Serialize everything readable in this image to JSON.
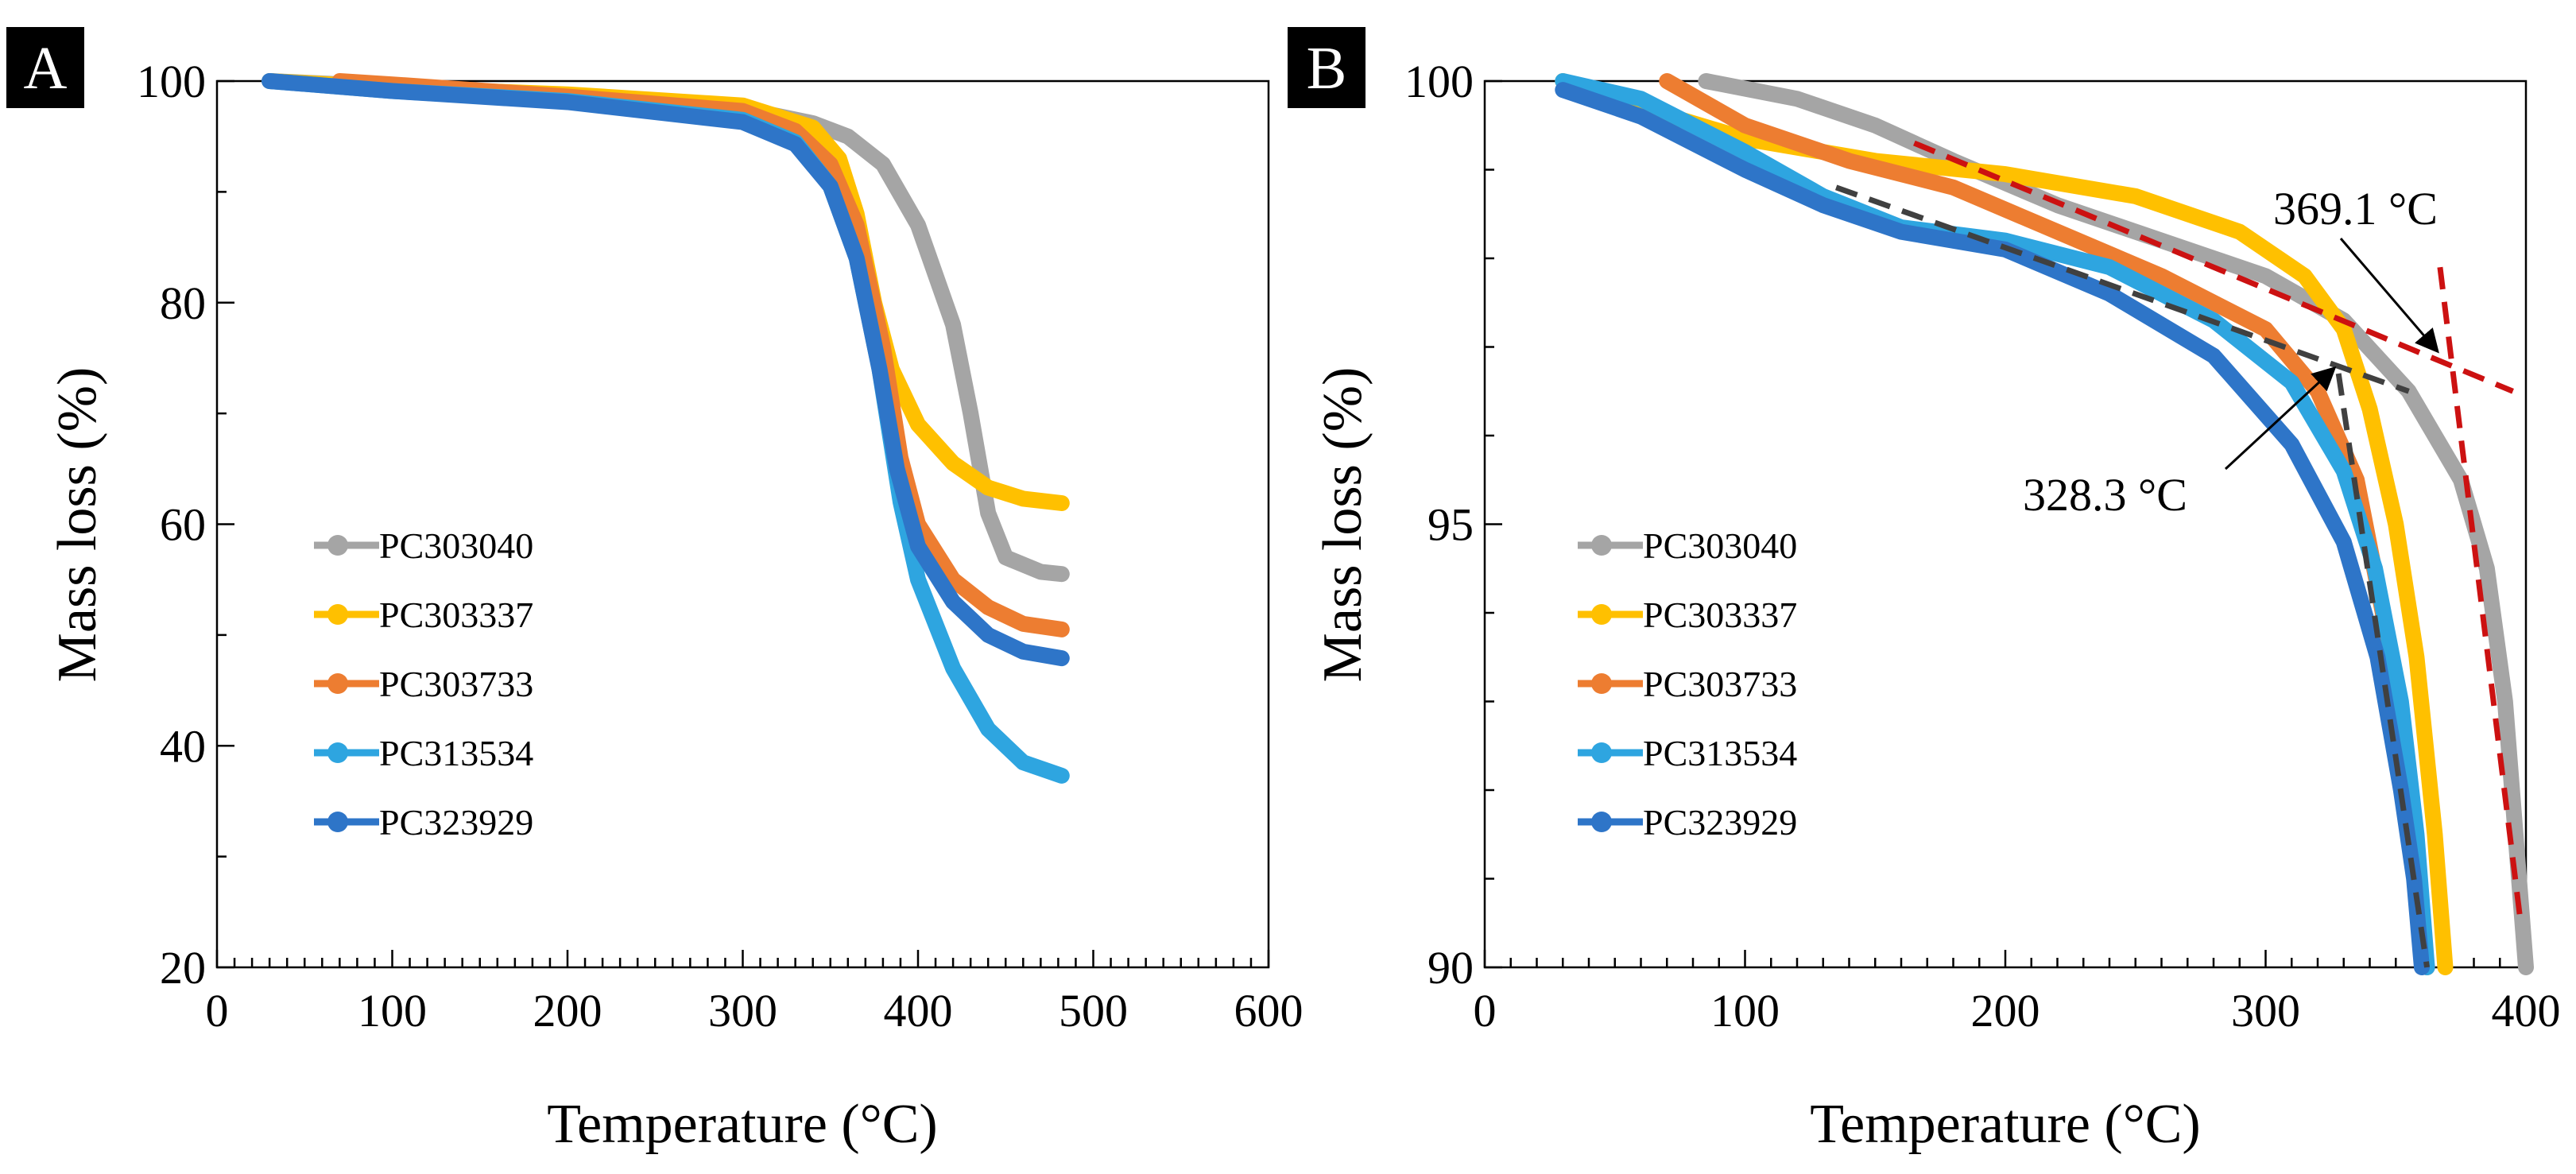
{
  "chart_data": [
    {
      "type": "line",
      "panel_label": "A",
      "xlabel": "Temperature (°C)",
      "ylabel": "Mass loss (%)",
      "xlim": [
        0,
        600
      ],
      "ylim": [
        20,
        100
      ],
      "xticks": [
        0,
        100,
        200,
        300,
        400,
        500,
        600
      ],
      "yticks": [
        20,
        40,
        60,
        80,
        100
      ],
      "xtick_labels": [
        "0",
        "100",
        "200",
        "300",
        "400",
        "500",
        "600"
      ],
      "ytick_labels": [
        "20",
        "40",
        "60",
        "80",
        "100"
      ],
      "legend_position": "lower-left",
      "series": [
        {
          "name": "PC303040",
          "color": "#a5a5a5",
          "points": [
            [
              30,
              100
            ],
            [
              100,
              99.5
            ],
            [
              200,
              98.7
            ],
            [
              300,
              97.5
            ],
            [
              340,
              96.2
            ],
            [
              360,
              95
            ],
            [
              380,
              92.5
            ],
            [
              400,
              87
            ],
            [
              420,
              78
            ],
            [
              430,
              70
            ],
            [
              440,
              61
            ],
            [
              450,
              57
            ],
            [
              470,
              55.7
            ],
            [
              482,
              55.5
            ]
          ]
        },
        {
          "name": "PC303337",
          "color": "#ffc000",
          "points": [
            [
              30,
              100
            ],
            [
              100,
              99.4
            ],
            [
              200,
              98.8
            ],
            [
              300,
              97.8
            ],
            [
              340,
              95.8
            ],
            [
              355,
              93
            ],
            [
              365,
              88
            ],
            [
              375,
              80
            ],
            [
              385,
              74
            ],
            [
              400,
              69
            ],
            [
              420,
              65.5
            ],
            [
              440,
              63.3
            ],
            [
              460,
              62.3
            ],
            [
              482,
              61.9
            ]
          ]
        },
        {
          "name": "PC303733",
          "color": "#ed7d31",
          "points": [
            [
              70,
              100
            ],
            [
              100,
              99.7
            ],
            [
              200,
              98.6
            ],
            [
              300,
              97.3
            ],
            [
              330,
              95.5
            ],
            [
              350,
              92.5
            ],
            [
              365,
              87
            ],
            [
              380,
              76
            ],
            [
              390,
              66
            ],
            [
              400,
              60
            ],
            [
              420,
              55
            ],
            [
              440,
              52.5
            ],
            [
              460,
              51
            ],
            [
              482,
              50.5
            ]
          ]
        },
        {
          "name": "PC313534",
          "color": "#2ea5e0",
          "points": [
            [
              30,
              100
            ],
            [
              100,
              99.1
            ],
            [
              200,
              98.2
            ],
            [
              300,
              96.5
            ],
            [
              330,
              94.5
            ],
            [
              350,
              90.5
            ],
            [
              365,
              84
            ],
            [
              378,
              74
            ],
            [
              390,
              62
            ],
            [
              400,
              55
            ],
            [
              420,
              47
            ],
            [
              440,
              41.5
            ],
            [
              460,
              38.5
            ],
            [
              482,
              37.3
            ]
          ]
        },
        {
          "name": "PC323929",
          "color": "#2e75c8",
          "points": [
            [
              30,
              100
            ],
            [
              100,
              99.1
            ],
            [
              200,
              98.1
            ],
            [
              300,
              96.3
            ],
            [
              330,
              94.3
            ],
            [
              350,
              90.5
            ],
            [
              365,
              84
            ],
            [
              378,
              74
            ],
            [
              388,
              65
            ],
            [
              400,
              58
            ],
            [
              420,
              53
            ],
            [
              440,
              50
            ],
            [
              460,
              48.5
            ],
            [
              482,
              47.9
            ]
          ]
        }
      ]
    },
    {
      "type": "line",
      "panel_label": "B",
      "xlabel": "Temperature (°C)",
      "ylabel": "Mass loss (%)",
      "xlim": [
        0,
        400
      ],
      "ylim": [
        90,
        100
      ],
      "xticks": [
        0,
        100,
        200,
        300,
        400
      ],
      "yticks": [
        90,
        95,
        100
      ],
      "xtick_labels": [
        "0",
        "100",
        "200",
        "300",
        "400"
      ],
      "ytick_labels": [
        "90",
        "95",
        "100"
      ],
      "legend_position": "lower-left",
      "series": [
        {
          "name": "PC303040",
          "color": "#a5a5a5",
          "points": [
            [
              85,
              100
            ],
            [
              120,
              99.8
            ],
            [
              150,
              99.5
            ],
            [
              180,
              99.1
            ],
            [
              220,
              98.6
            ],
            [
              260,
              98.2
            ],
            [
              300,
              97.8
            ],
            [
              330,
              97.3
            ],
            [
              355,
              96.5
            ],
            [
              375,
              95.5
            ],
            [
              385,
              94.5
            ],
            [
              392,
              93
            ],
            [
              396,
              91.5
            ],
            [
              400,
              90
            ]
          ]
        },
        {
          "name": "PC303337",
          "color": "#ffc000",
          "points": [
            [
              30,
              100
            ],
            [
              60,
              99.7
            ],
            [
              100,
              99.35
            ],
            [
              150,
              99.1
            ],
            [
              200,
              98.95
            ],
            [
              250,
              98.7
            ],
            [
              290,
              98.3
            ],
            [
              315,
              97.8
            ],
            [
              330,
              97.2
            ],
            [
              340,
              96.3
            ],
            [
              350,
              95
            ],
            [
              358,
              93.5
            ],
            [
              365,
              91.5
            ],
            [
              369,
              90
            ]
          ]
        },
        {
          "name": "PC303733",
          "color": "#ed7d31",
          "points": [
            [
              70,
              100
            ],
            [
              100,
              99.5
            ],
            [
              140,
              99.1
            ],
            [
              180,
              98.8
            ],
            [
              220,
              98.3
            ],
            [
              260,
              97.8
            ],
            [
              300,
              97.2
            ],
            [
              320,
              96.5
            ],
            [
              335,
              95.5
            ],
            [
              345,
              94
            ],
            [
              352,
              92.5
            ],
            [
              358,
              91
            ],
            [
              362,
              90
            ]
          ]
        },
        {
          "name": "PC313534",
          "color": "#2ea5e0",
          "points": [
            [
              30,
              100
            ],
            [
              60,
              99.8
            ],
            [
              100,
              99.2
            ],
            [
              130,
              98.7
            ],
            [
              160,
              98.35
            ],
            [
              200,
              98.2
            ],
            [
              240,
              97.9
            ],
            [
              280,
              97.3
            ],
            [
              310,
              96.6
            ],
            [
              330,
              95.6
            ],
            [
              342,
              94.5
            ],
            [
              352,
              93
            ],
            [
              358,
              91.5
            ],
            [
              362,
              90
            ]
          ]
        },
        {
          "name": "PC323929",
          "color": "#2e75c8",
          "points": [
            [
              30,
              99.9
            ],
            [
              60,
              99.6
            ],
            [
              100,
              99
            ],
            [
              130,
              98.6
            ],
            [
              160,
              98.3
            ],
            [
              200,
              98.1
            ],
            [
              240,
              97.6
            ],
            [
              280,
              96.9
            ],
            [
              310,
              95.9
            ],
            [
              330,
              94.8
            ],
            [
              343,
              93.5
            ],
            [
              352,
              92
            ],
            [
              357,
              91
            ],
            [
              360,
              90
            ]
          ]
        }
      ],
      "tangent_lines": [
        {
          "color": "#cc1111",
          "points": [
            [
              165,
              99.3
            ],
            [
              395,
              96.5
            ]
          ]
        },
        {
          "color": "#cc1111",
          "points": [
            [
              367,
              97.9
            ],
            [
              398,
              90.5
            ]
          ]
        },
        {
          "color": "#404040",
          "points": [
            [
              135,
              98.8
            ],
            [
              355,
              96.5
            ]
          ]
        },
        {
          "color": "#404040",
          "points": [
            [
              328,
              96.7
            ],
            [
              362,
              90
            ]
          ]
        }
      ],
      "annotations": [
        {
          "text": "369.1 °C",
          "x": 369.1
        },
        {
          "text": "328.3 °C",
          "x": 328.3
        }
      ]
    }
  ]
}
